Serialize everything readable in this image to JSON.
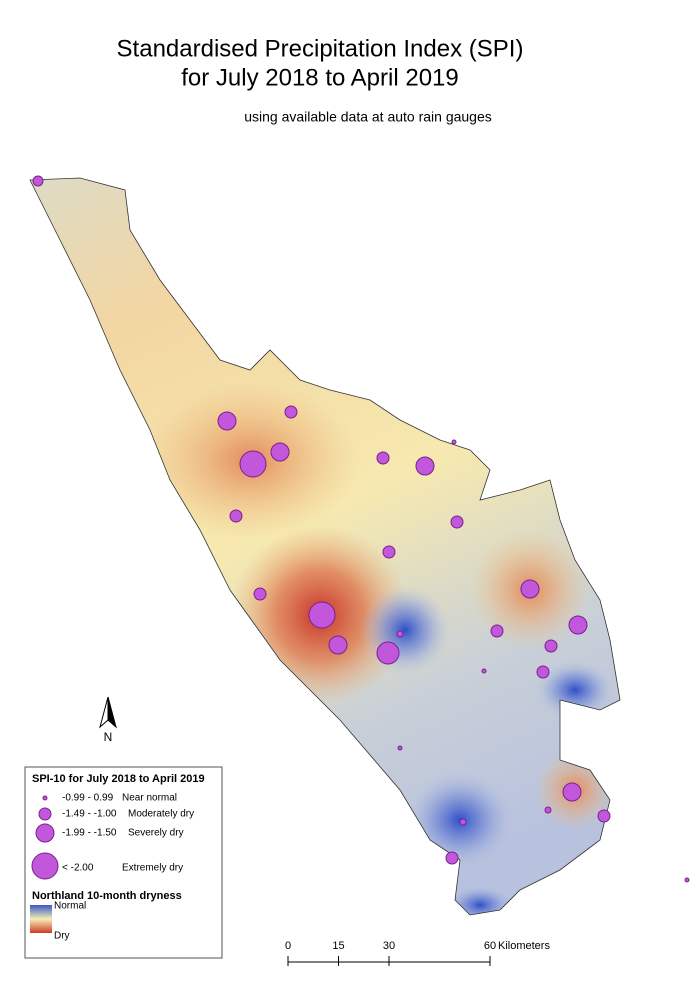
{
  "title": [
    "Standardised Precipitation Index (SPI)",
    "for July 2018 to April 2019"
  ],
  "subtitle": "using available data at auto rain gauges",
  "north_arrow": "N",
  "legend": {
    "title": "SPI-10 for July 2018 to April 2019",
    "items": [
      {
        "range": "-0.99 - 0.99",
        "label": "Near normal"
      },
      {
        "range": "-1.49 - -1.00",
        "label": "Moderately dry"
      },
      {
        "range": "-1.99 - -1.50",
        "label": "Severely dry"
      },
      {
        "range": "< -2.00",
        "label": "Extremely dry"
      }
    ],
    "gradient_title": "Northland 10-month dryness",
    "gradient_top": "Normal",
    "gradient_bottom": "Dry"
  },
  "scale_bar": {
    "ticks": [
      0,
      15,
      30,
      60
    ],
    "unit": "Kilometers"
  }
}
